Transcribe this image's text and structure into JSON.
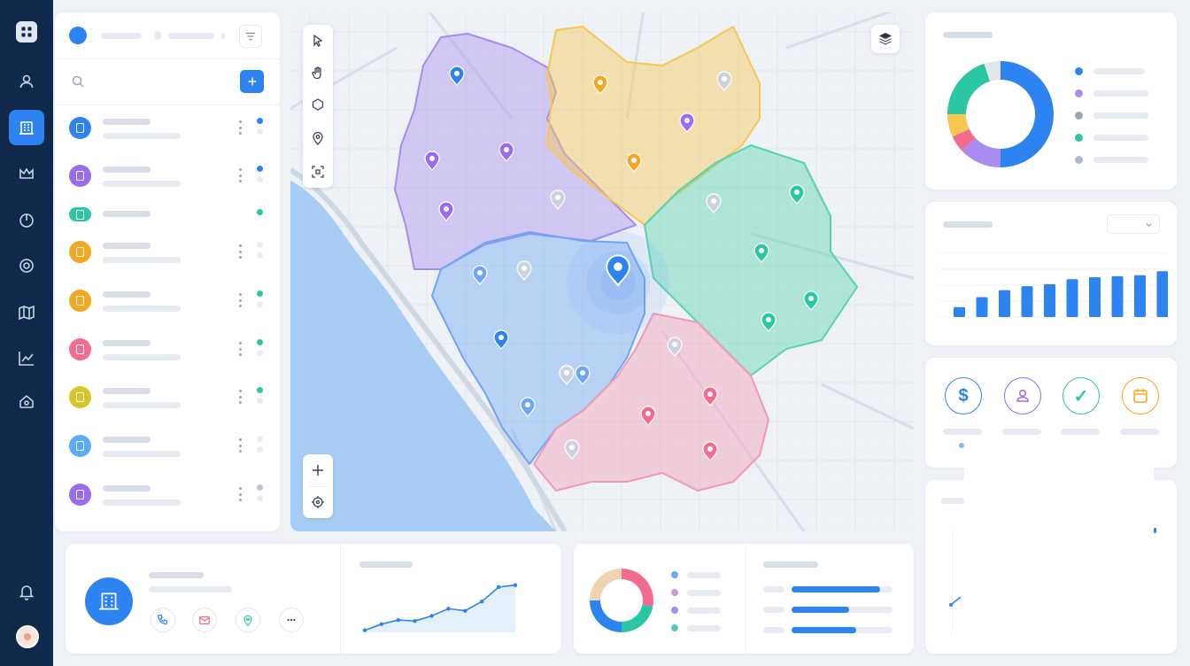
{
  "sidebar": {
    "icons": [
      "apps-icon",
      "user-icon",
      "building-icon",
      "crown-icon",
      "pie-icon",
      "target-icon",
      "map-icon",
      "trend-icon",
      "home-icon",
      "bell-icon"
    ]
  },
  "list": {
    "rows": [
      {
        "color": "#2d84f0",
        "status": "#2d84f0"
      },
      {
        "color": "#9b6cf0",
        "status": "#2d84f0"
      },
      {
        "color": "#2bc6a4",
        "status": "#2bc6a4"
      },
      {
        "color": "#f5a623",
        "status": "#e9edf2"
      },
      {
        "color": "#f5a623",
        "status": "#2bc6a4"
      },
      {
        "color": "#f36b8d",
        "status": "#2bc6a4"
      },
      {
        "color": "#d8c52a",
        "status": "#2bc6a4"
      },
      {
        "color": "#5aaaf5",
        "status": "#e9edf2"
      },
      {
        "color": "#9b6cf0",
        "status": "#b9c5d3"
      },
      {
        "color": "#9b6cf0",
        "status": "#2d84f0"
      }
    ]
  },
  "map": {
    "regions": [
      {
        "name": "purple-region",
        "color": "#a98cf0"
      },
      {
        "name": "yellow-region",
        "color": "#f7c750"
      },
      {
        "name": "green-region",
        "color": "#55d3ae"
      },
      {
        "name": "blue-region",
        "color": "#6ea6f5"
      },
      {
        "name": "pink-region",
        "color": "#f29ab5"
      }
    ],
    "tools": [
      "pointer-icon",
      "hand-icon",
      "polygon-icon",
      "pin-icon",
      "select-area-icon"
    ]
  },
  "donut": {
    "chart_data": {
      "type": "pie",
      "values": [
        50,
        13,
        5,
        7,
        20,
        5
      ],
      "colors": [
        "#2d84f0",
        "#a98cf0",
        "#f36b8d",
        "#f7c750",
        "#2bc6a4",
        "#e2e7ee"
      ]
    },
    "legend_colors": [
      "#2d84f0",
      "#a98cf0",
      "#8fa9c0",
      "#2bc6a4",
      "#b1b7d9"
    ]
  },
  "bars": {
    "chart_data": {
      "type": "bar",
      "values": [
        10,
        20,
        27,
        31,
        33,
        38,
        40,
        41,
        42,
        46,
        59,
        70
      ],
      "ylim": [
        0,
        80
      ],
      "color": "#2d84f0"
    }
  },
  "categories": [
    {
      "icon": "dollar-icon",
      "color": "#2d84f0",
      "glyph": "$"
    },
    {
      "icon": "person-icon",
      "color": "#9b6cf0",
      "glyph": ""
    },
    {
      "icon": "check-icon",
      "color": "#2bc6a4",
      "glyph": "✓"
    },
    {
      "icon": "calendar-icon",
      "color": "#f5a623",
      "glyph": ""
    }
  ],
  "mini_line": {
    "chart_data": {
      "type": "area",
      "values": [
        2,
        8,
        12,
        11,
        16,
        23,
        21,
        30,
        44,
        46
      ],
      "ylim": [
        0,
        50
      ],
      "color": "#2d84f0"
    }
  },
  "bottom_donut": {
    "chart_data": {
      "type": "pie",
      "values": [
        28,
        22,
        25,
        25
      ],
      "colors": [
        "#f36b8d",
        "#2bc6a4",
        "#2d84f0",
        "#f0d3b0"
      ]
    },
    "legend_colors": [
      "#6ea6f5",
      "#c99bd3",
      "#a98cf0",
      "#55c9b8"
    ]
  },
  "progress": {
    "values": [
      0.88,
      0.57,
      0.64
    ]
  }
}
